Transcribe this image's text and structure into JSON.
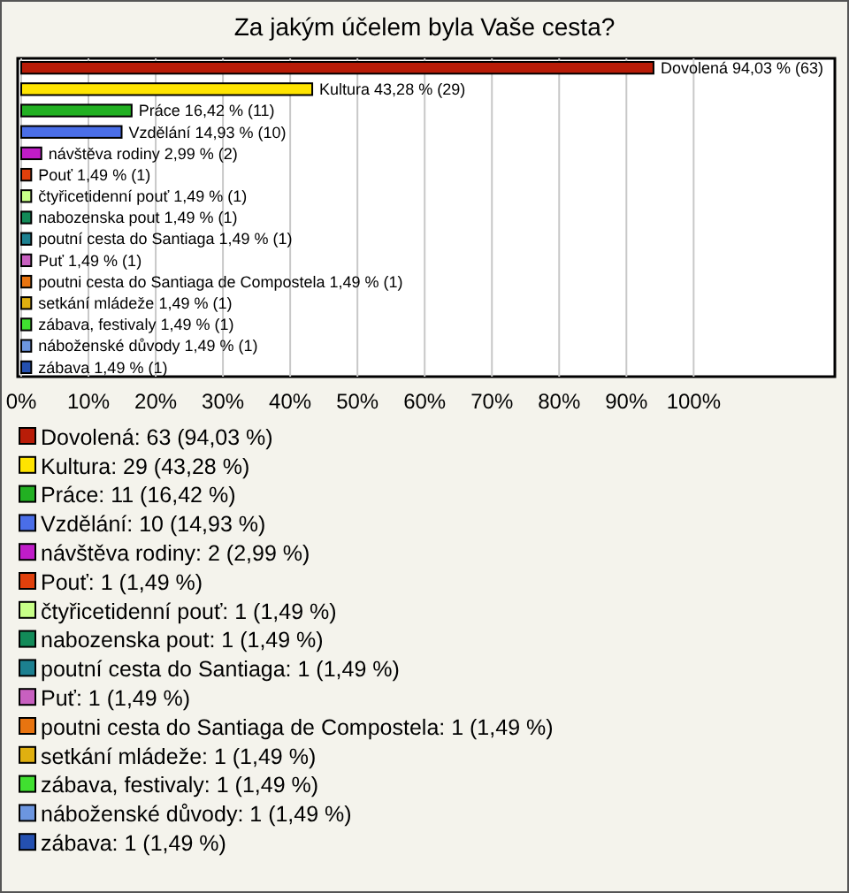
{
  "chart_data": {
    "type": "bar",
    "orientation": "horizontal",
    "title": "Za jakým účelem byla Vaše cesta?",
    "categories": [
      "Dovolená",
      "Kultura",
      "Práce",
      "Vzdělání",
      "návštěva rodiny",
      "Pouť",
      "čtyřicetidenní pouť",
      "nabozenska pout",
      "poutní cesta do Santiaga",
      "Puť",
      "poutni cesta do Santiaga de Compostela",
      "setkání mládeže",
      "zábava, festivaly",
      "náboženské důvody",
      "zábava"
    ],
    "values": [
      94.03,
      43.28,
      16.42,
      14.93,
      2.99,
      1.49,
      1.49,
      1.49,
      1.49,
      1.49,
      1.49,
      1.49,
      1.49,
      1.49,
      1.49
    ],
    "value_labels": [
      "94,03 % (63)",
      "43,28 % (29)",
      "16,42 % (11)",
      "14,93 % (10)",
      "2,99 % (2)",
      "1,49 % (1)",
      "1,49 % (1)",
      "1,49 % (1)",
      "1,49 % (1)",
      "1,49 % (1)",
      "1,49 % (1)",
      "1,49 % (1)",
      "1,49 % (1)",
      "1,49 % (1)",
      "1,49 % (1)"
    ],
    "colors": [
      "#b81c08",
      "#ffe400",
      "#22b022",
      "#4a6ee8",
      "#c01cc8",
      "#e0400c",
      "#c8ff88",
      "#128a58",
      "#1c8090",
      "#c860c0",
      "#e87410",
      "#e0b010",
      "#40e030",
      "#6c96e0",
      "#2450b0"
    ],
    "xlim": [
      0,
      121
    ],
    "xticks": [
      {
        "value": 0,
        "label": "0%"
      },
      {
        "value": 10,
        "label": "10%"
      },
      {
        "value": 20,
        "label": "20%"
      },
      {
        "value": 30,
        "label": "30%"
      },
      {
        "value": 40,
        "label": "40%"
      },
      {
        "value": 50,
        "label": "50%"
      },
      {
        "value": 60,
        "label": "60%"
      },
      {
        "value": 70,
        "label": "70%"
      },
      {
        "value": 80,
        "label": "80%"
      },
      {
        "value": 90,
        "label": "90%"
      },
      {
        "value": 100,
        "label": "100%"
      }
    ],
    "grid": "x",
    "annotations": [
      "Dovolená: 63 (94,03 %)",
      "Kultura: 29 (43,28 %)",
      "Práce: 11 (16,42 %)",
      "Vzdělání: 10 (14,93 %)",
      "návštěva rodiny: 2 (2,99 %)",
      "Pouť: 1 (1,49 %)",
      "čtyřicetidenní pouť: 1 (1,49 %)",
      "nabozenska pout: 1 (1,49 %)",
      "poutní cesta do Santiaga: 1 (1,49 %)",
      "Puť: 1 (1,49 %)",
      "poutni cesta do Santiaga de Compostela: 1 (1,49 %)",
      "setkání mládeže: 1 (1,49 %)",
      "zábava, festivaly: 1 (1,49 %)",
      "náboženské důvody: 1 (1,49 %)",
      "zábava: 1 (1,49 %)"
    ]
  }
}
